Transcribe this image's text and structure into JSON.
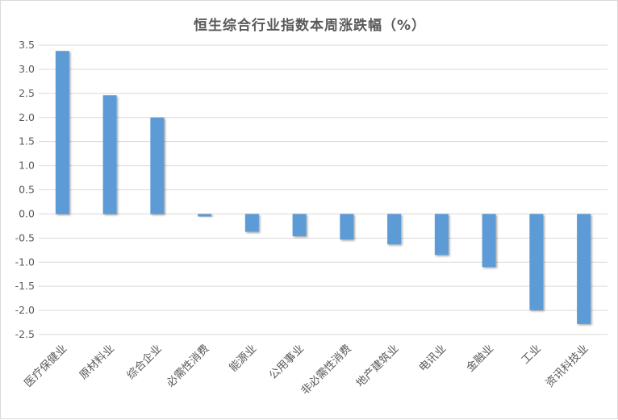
{
  "chart_data": {
    "type": "bar",
    "title": "恒生综合行业指数本周涨跌幅（%）",
    "categories": [
      "医疗保健业",
      "原材料业",
      "综合企业",
      "必需性消费",
      "能源业",
      "公用事业",
      "非必需性消费",
      "地产建筑业",
      "电讯业",
      "金融业",
      "工业",
      "资讯科技业"
    ],
    "series": [
      {
        "values": [
          3.38,
          2.46,
          2.0,
          -0.05,
          -0.37,
          -0.46,
          -0.53,
          -0.63,
          -0.85,
          -1.1,
          -1.99,
          -2.28
        ]
      }
    ],
    "ylim": [
      -2.5,
      3.5
    ],
    "yticks": [
      "3.5",
      "3.0",
      "2.5",
      "2.0",
      "1.5",
      "1.0",
      "0.5",
      "0.0",
      "-0.5",
      "-1.0",
      "-1.5",
      "-2.0",
      "-2.5"
    ],
    "xlabel": "",
    "ylabel": "",
    "grid": true,
    "bar_color": "#5b9bd5",
    "grid_color": "#d9d9d9",
    "text_color": "#595959"
  }
}
